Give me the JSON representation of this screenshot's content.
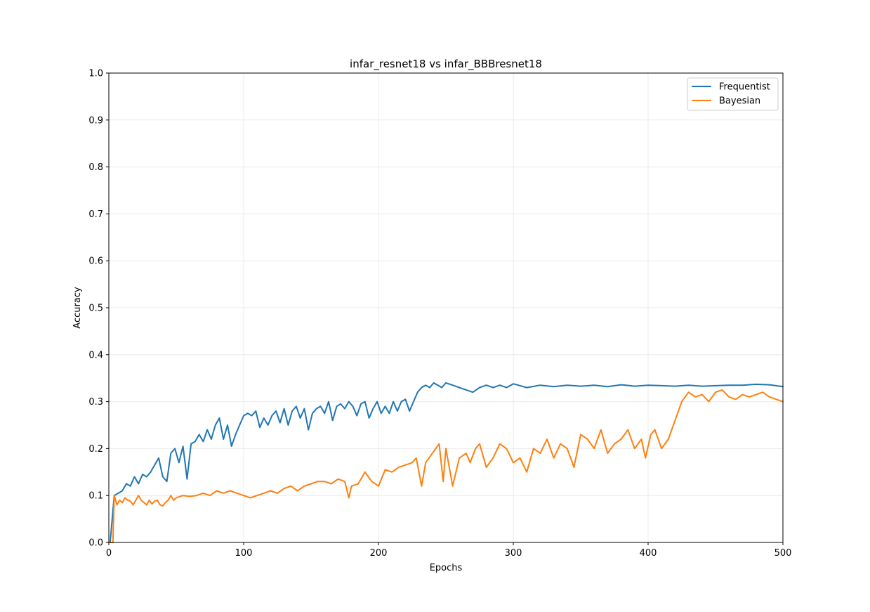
{
  "chart_data": {
    "type": "line",
    "title": "infar_resnet18 vs infar_BBBresnet18",
    "xlabel": "Epochs",
    "ylabel": "Accuracy",
    "xlim": [
      0,
      500
    ],
    "ylim": [
      0.0,
      1.0
    ],
    "xticks": [
      "0",
      "100",
      "200",
      "300",
      "400",
      "500"
    ],
    "yticks": [
      "0.0",
      "0.1",
      "0.2",
      "0.3",
      "0.4",
      "0.5",
      "0.6",
      "0.7",
      "0.8",
      "0.9",
      "1.0"
    ],
    "grid": true,
    "legend_position": "upper right",
    "series": [
      {
        "name": "Frequentist",
        "color": "#1f77b4",
        "x": [
          1,
          4,
          7,
          10,
          13,
          16,
          19,
          22,
          25,
          28,
          31,
          34,
          37,
          40,
          43,
          46,
          49,
          52,
          55,
          58,
          61,
          64,
          67,
          70,
          73,
          76,
          79,
          82,
          85,
          88,
          91,
          94,
          97,
          100,
          103,
          106,
          109,
          112,
          115,
          118,
          121,
          124,
          127,
          130,
          133,
          136,
          139,
          142,
          145,
          148,
          151,
          154,
          157,
          160,
          163,
          166,
          169,
          172,
          175,
          178,
          181,
          184,
          187,
          190,
          193,
          196,
          199,
          202,
          205,
          208,
          211,
          214,
          217,
          220,
          223,
          226,
          229,
          232,
          235,
          238,
          241,
          244,
          247,
          250,
          255,
          260,
          265,
          270,
          275,
          280,
          285,
          290,
          295,
          300,
          310,
          320,
          330,
          340,
          350,
          360,
          370,
          380,
          390,
          400,
          410,
          420,
          430,
          440,
          450,
          460,
          470,
          480,
          490,
          500
        ],
        "y": [
          0.0,
          0.1,
          0.105,
          0.11,
          0.125,
          0.12,
          0.14,
          0.125,
          0.145,
          0.14,
          0.15,
          0.165,
          0.18,
          0.14,
          0.13,
          0.19,
          0.2,
          0.17,
          0.205,
          0.135,
          0.21,
          0.215,
          0.23,
          0.215,
          0.24,
          0.22,
          0.25,
          0.265,
          0.22,
          0.25,
          0.205,
          0.23,
          0.25,
          0.27,
          0.275,
          0.27,
          0.28,
          0.245,
          0.265,
          0.25,
          0.27,
          0.28,
          0.255,
          0.285,
          0.25,
          0.28,
          0.29,
          0.265,
          0.285,
          0.24,
          0.275,
          0.285,
          0.29,
          0.275,
          0.3,
          0.26,
          0.29,
          0.295,
          0.285,
          0.3,
          0.29,
          0.27,
          0.295,
          0.3,
          0.265,
          0.285,
          0.3,
          0.275,
          0.29,
          0.275,
          0.3,
          0.28,
          0.3,
          0.305,
          0.28,
          0.3,
          0.32,
          0.33,
          0.335,
          0.33,
          0.34,
          0.335,
          0.33,
          0.34,
          0.335,
          0.33,
          0.325,
          0.32,
          0.33,
          0.335,
          0.33,
          0.335,
          0.33,
          0.338,
          0.33,
          0.335,
          0.332,
          0.335,
          0.333,
          0.335,
          0.332,
          0.336,
          0.333,
          0.335,
          0.334,
          0.333,
          0.335,
          0.333,
          0.334,
          0.335,
          0.335,
          0.337,
          0.336,
          0.332
        ]
      },
      {
        "name": "Bayesian",
        "color": "#ff7f0e",
        "x": [
          1,
          3,
          4,
          6,
          8,
          10,
          12,
          14,
          16,
          18,
          20,
          22,
          24,
          26,
          28,
          30,
          32,
          34,
          36,
          38,
          40,
          42,
          44,
          46,
          48,
          50,
          55,
          60,
          65,
          70,
          75,
          80,
          85,
          90,
          95,
          100,
          105,
          110,
          115,
          120,
          125,
          130,
          135,
          140,
          145,
          150,
          155,
          160,
          165,
          170,
          175,
          178,
          180,
          185,
          190,
          195,
          200,
          205,
          210,
          215,
          220,
          225,
          228,
          232,
          235,
          240,
          245,
          248,
          250,
          255,
          260,
          265,
          268,
          272,
          275,
          280,
          285,
          290,
          295,
          300,
          305,
          310,
          315,
          320,
          325,
          330,
          335,
          340,
          345,
          350,
          355,
          360,
          365,
          370,
          375,
          380,
          385,
          390,
          395,
          398,
          402,
          405,
          410,
          415,
          420,
          425,
          430,
          435,
          440,
          445,
          450,
          455,
          460,
          465,
          470,
          475,
          480,
          485,
          490,
          495,
          500
        ],
        "y": [
          0.0,
          0.0,
          0.1,
          0.08,
          0.09,
          0.085,
          0.095,
          0.09,
          0.088,
          0.08,
          0.09,
          0.1,
          0.09,
          0.085,
          0.08,
          0.09,
          0.082,
          0.088,
          0.09,
          0.08,
          0.078,
          0.085,
          0.09,
          0.1,
          0.09,
          0.095,
          0.1,
          0.098,
          0.1,
          0.105,
          0.1,
          0.11,
          0.105,
          0.11,
          0.105,
          0.1,
          0.095,
          0.1,
          0.105,
          0.11,
          0.105,
          0.115,
          0.12,
          0.11,
          0.12,
          0.125,
          0.13,
          0.13,
          0.125,
          0.135,
          0.13,
          0.095,
          0.12,
          0.125,
          0.15,
          0.13,
          0.12,
          0.155,
          0.15,
          0.16,
          0.165,
          0.17,
          0.18,
          0.12,
          0.17,
          0.19,
          0.21,
          0.13,
          0.2,
          0.12,
          0.18,
          0.19,
          0.17,
          0.2,
          0.21,
          0.16,
          0.18,
          0.21,
          0.2,
          0.17,
          0.18,
          0.15,
          0.2,
          0.19,
          0.22,
          0.18,
          0.21,
          0.2,
          0.16,
          0.23,
          0.22,
          0.2,
          0.24,
          0.19,
          0.21,
          0.22,
          0.24,
          0.2,
          0.22,
          0.18,
          0.23,
          0.24,
          0.2,
          0.22,
          0.26,
          0.3,
          0.32,
          0.31,
          0.315,
          0.3,
          0.32,
          0.325,
          0.31,
          0.305,
          0.315,
          0.31,
          0.315,
          0.32,
          0.31,
          0.305,
          0.3
        ]
      }
    ]
  }
}
